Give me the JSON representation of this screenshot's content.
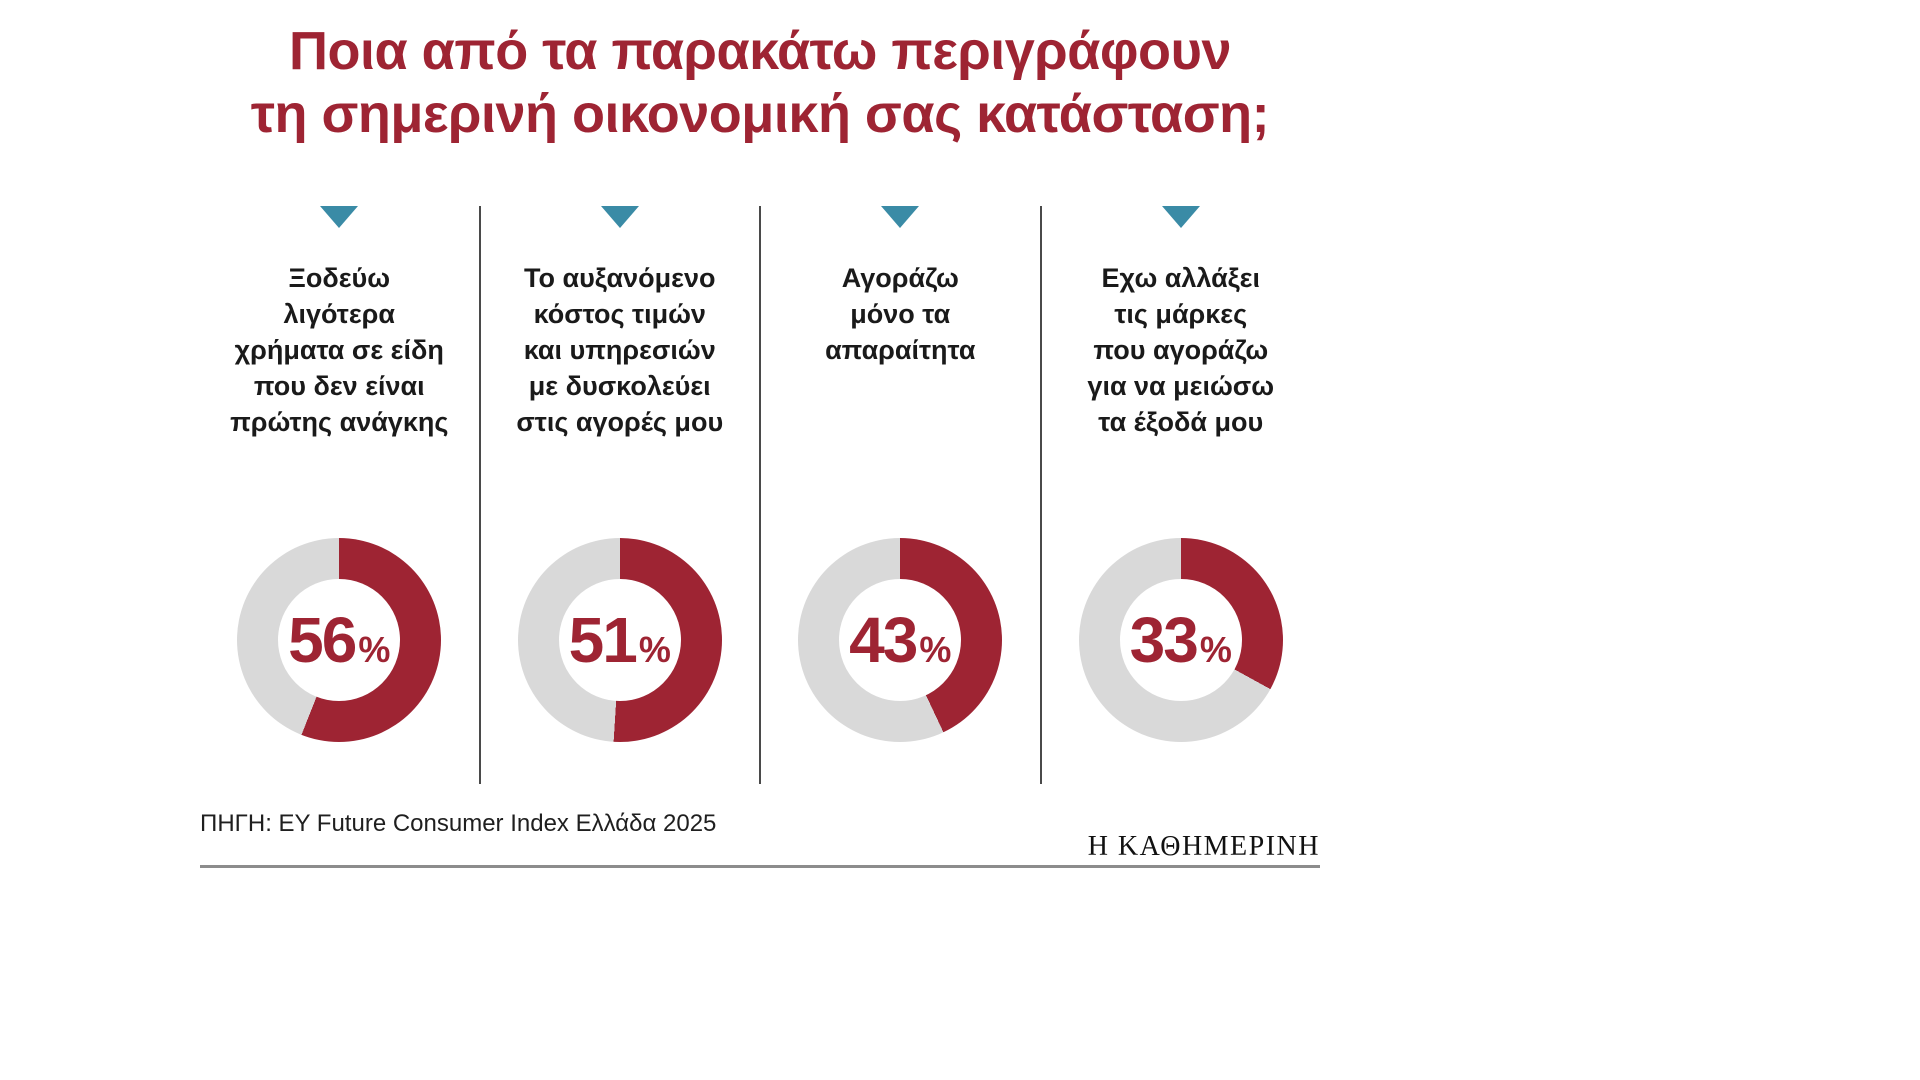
{
  "title": {
    "lines": [
      "Ποια από τα παρακάτω περιγράφουν",
      "τη σημερινή οικονομική σας κατάσταση;"
    ]
  },
  "chart_data": {
    "type": "pie",
    "variant": "donut-multiples",
    "title": "Ποια από τα παρακάτω περιγράφουν τη σημερινή οικονομική σας κατάσταση;",
    "unit": "%",
    "categories": [
      "Ξοδεύω λιγότερα χρήματα σε είδη που δεν είναι πρώτης ανάγκης",
      "Το αυξανόμενο κόστος τιμών και υπηρεσιών με δυσκολεύει στις αγορές μου",
      "Αγοράζω μόνο τα απαραίτητα",
      "Εχω αλλάξει τις μάρκες που αγοράζω για να μειώσω τα έξοδά μου"
    ],
    "values": [
      56,
      51,
      43,
      33
    ],
    "start_angle_deg": 0,
    "direction": "clockwise",
    "colors": {
      "fill": "#9e2433",
      "track": "#d9d9d9"
    },
    "source": "ΠΗΓΗ: EY Future Consumer Index Ελλάδα 2025"
  },
  "columns": [
    {
      "label_lines": [
        "Ξοδεύω",
        "λιγότερα",
        "χρήματα σε είδη",
        "που δεν είναι",
        "πρώτης ανάγκης"
      ],
      "value": "56",
      "unit": "%"
    },
    {
      "label_lines": [
        "Το αυξανόμενο",
        "κόστος τιμών",
        "και υπηρεσιών",
        "με δυσκολεύει",
        "στις αγορές μου"
      ],
      "value": "51",
      "unit": "%"
    },
    {
      "label_lines": [
        "Αγοράζω",
        "μόνο τα",
        "απαραίτητα"
      ],
      "value": "43",
      "unit": "%"
    },
    {
      "label_lines": [
        "Εχω αλλάξει",
        "τις μάρκες",
        "που αγοράζω",
        "για να μειώσω",
        "τα έξοδά μου"
      ],
      "value": "33",
      "unit": "%"
    }
  ],
  "source": "ΠΗΓΗ: EY Future Consumer Index Ελλάδα 2025",
  "brand": "Η ΚΑΘΗΜΕΡΙΝΗ",
  "accent_colors": {
    "triangle": "#3a8ba6",
    "title": "#9e2433"
  }
}
